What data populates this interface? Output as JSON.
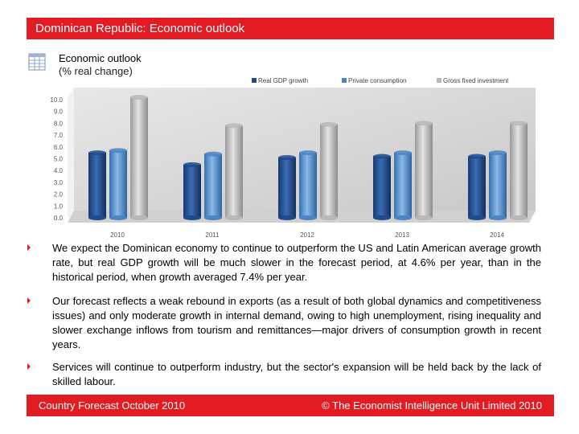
{
  "header": {
    "title": "Dominican Republic: Economic outlook"
  },
  "chart_heading": {
    "title": "Economic outlook",
    "subtitle": "(% real change)"
  },
  "chart_data": {
    "type": "bar",
    "categories": [
      "2010",
      "2011",
      "2012",
      "2013",
      "2014"
    ],
    "series": [
      {
        "name": "Real GDP growth",
        "values": [
          5.5,
          4.5,
          5.1,
          5.2,
          5.2
        ]
      },
      {
        "name": "Private consumption",
        "values": [
          5.7,
          5.4,
          5.5,
          5.5,
          5.5
        ]
      },
      {
        "name": "Gross fixed investment",
        "values": [
          10.2,
          7.8,
          7.9,
          8.0,
          8.0
        ]
      }
    ],
    "y_ticks": [
      "0.0",
      "1.0",
      "2.0",
      "3.0",
      "4.0",
      "5.0",
      "6.0",
      "7.0",
      "8.0",
      "9.0",
      "10.0"
    ],
    "ylim": [
      0,
      10.0
    ],
    "legend_position": "top",
    "colors": [
      "#1f4a8c",
      "#4a84c4",
      "#b8b8b8"
    ]
  },
  "bullets": [
    "We expect the Dominican economy to continue to outperform the US and Latin American average growth rate, but real GDP growth will be much slower in the forecast period, at 4.6% per year, than in the historical period, when growth averaged 7.4% per year.",
    "Our forecast reflects a weak rebound in exports (as a result of both global dynamics and competitiveness issues) and only moderate growth in internal demand, owing to high unemployment, rising inequality and slower exchange inflows from tourism and remittances—major drivers of consumption growth in recent years.",
    "Services will continue to outperform industry, but the sector's expansion will be held back by the lack of skilled labour."
  ],
  "footer": {
    "left": "Country Forecast October 2010",
    "right": "© The Economist Intelligence Unit Limited 2010"
  },
  "colors": {
    "accent": "#e31b23"
  }
}
